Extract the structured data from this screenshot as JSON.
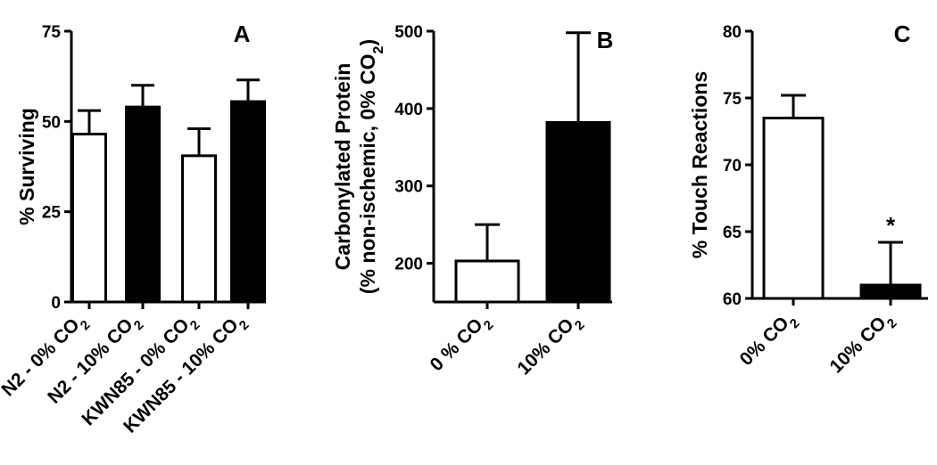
{
  "colors": {
    "filled": "#000000",
    "open": "#ffffff",
    "stroke": "#000000"
  },
  "chart_data": [
    {
      "type": "bar",
      "panel_label": "A",
      "ylabel": "% Surviving",
      "ylim": [
        0,
        75
      ],
      "yticks": [
        0,
        25,
        50,
        75
      ],
      "categories": [
        {
          "text": "N2 - 0% CO",
          "sub": "2"
        },
        {
          "text": "N2 - 10% CO",
          "sub": "2"
        },
        {
          "text": "KWN85 - 0% CO",
          "sub": "2"
        },
        {
          "text": "KWN85 - 10% CO",
          "sub": "2"
        }
      ],
      "values": [
        46.5,
        54,
        40.5,
        55.5
      ],
      "errors": [
        6.5,
        6,
        7.5,
        6
      ],
      "fills": [
        "open",
        "filled",
        "open",
        "filled"
      ]
    },
    {
      "type": "bar",
      "panel_label": "B",
      "ylabel": {
        "line1": "Carbonylated Protein",
        "line2": "(% non-ischemic, 0% CO",
        "line2_sub": "2",
        "line2_end": ")"
      },
      "ylim": [
        150,
        500
      ],
      "yticks": [
        200,
        300,
        400,
        500
      ],
      "categories": [
        {
          "text": "0 % CO",
          "sub": "2"
        },
        {
          "text": "10% CO",
          "sub": "2"
        }
      ],
      "values": [
        203,
        382
      ],
      "errors": [
        47,
        116
      ],
      "fills": [
        "open",
        "filled"
      ]
    },
    {
      "type": "bar",
      "panel_label": "C",
      "ylabel": "% Touch Reactions",
      "ylim": [
        60,
        80
      ],
      "yticks": [
        60,
        65,
        70,
        75,
        80
      ],
      "categories": [
        {
          "text": "0% CO",
          "sub": "2"
        },
        {
          "text": "10% CO",
          "sub": "2"
        }
      ],
      "values": [
        73.5,
        61
      ],
      "errors": [
        1.7,
        3.2
      ],
      "fills": [
        "open",
        "filled"
      ],
      "annotations": [
        "",
        "*"
      ]
    }
  ]
}
